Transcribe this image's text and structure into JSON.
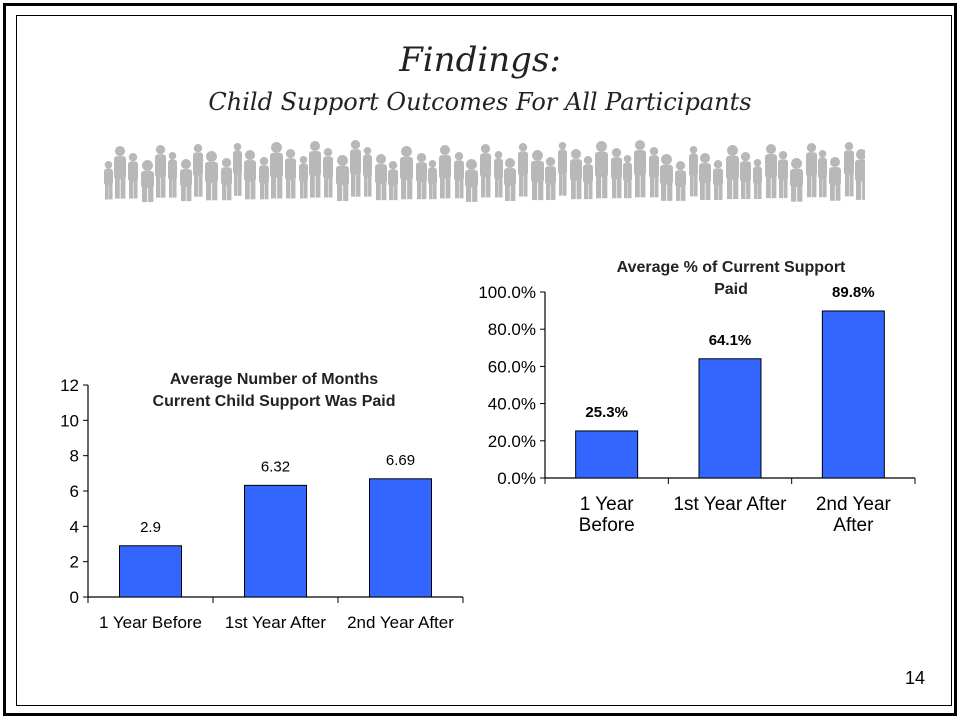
{
  "slide": {
    "title": "Findings:",
    "subtitle": "Child Support Outcomes For All Participants",
    "page_number": "14"
  },
  "chart_data": [
    {
      "type": "bar",
      "title_lines": [
        "Average Number of Months",
        "Current Child Support Was Paid"
      ],
      "categories": [
        "1 Year Before",
        "1st Year After",
        "2nd Year After"
      ],
      "values": [
        2.9,
        6.32,
        6.69
      ],
      "data_labels": [
        "2.9",
        "6.32",
        "6.69"
      ],
      "ylim": [
        0,
        12
      ],
      "yticks": [
        0,
        2,
        4,
        6,
        8,
        10,
        12
      ],
      "ytick_labels": [
        "0",
        "2",
        "4",
        "6",
        "8",
        "10",
        "12"
      ],
      "bar_color": "#3366ff",
      "grid": false,
      "legend": "none"
    },
    {
      "type": "bar",
      "title_lines": [
        "Average % of Current Support",
        "Paid"
      ],
      "categories": [
        [
          "1 Year",
          "Before"
        ],
        [
          "1st Year After"
        ],
        [
          "2nd Year",
          "After"
        ]
      ],
      "values": [
        25.3,
        64.1,
        89.8
      ],
      "data_labels": [
        "25.3%",
        "64.1%",
        "89.8%"
      ],
      "ylim": [
        0,
        100
      ],
      "yticks": [
        0,
        20,
        40,
        60,
        80,
        100
      ],
      "ytick_labels": [
        "0.0%",
        "20.0%",
        "40.0%",
        "60.0%",
        "80.0%",
        "100.0%"
      ],
      "bar_color": "#3366ff",
      "grid": false,
      "legend": "none"
    }
  ]
}
